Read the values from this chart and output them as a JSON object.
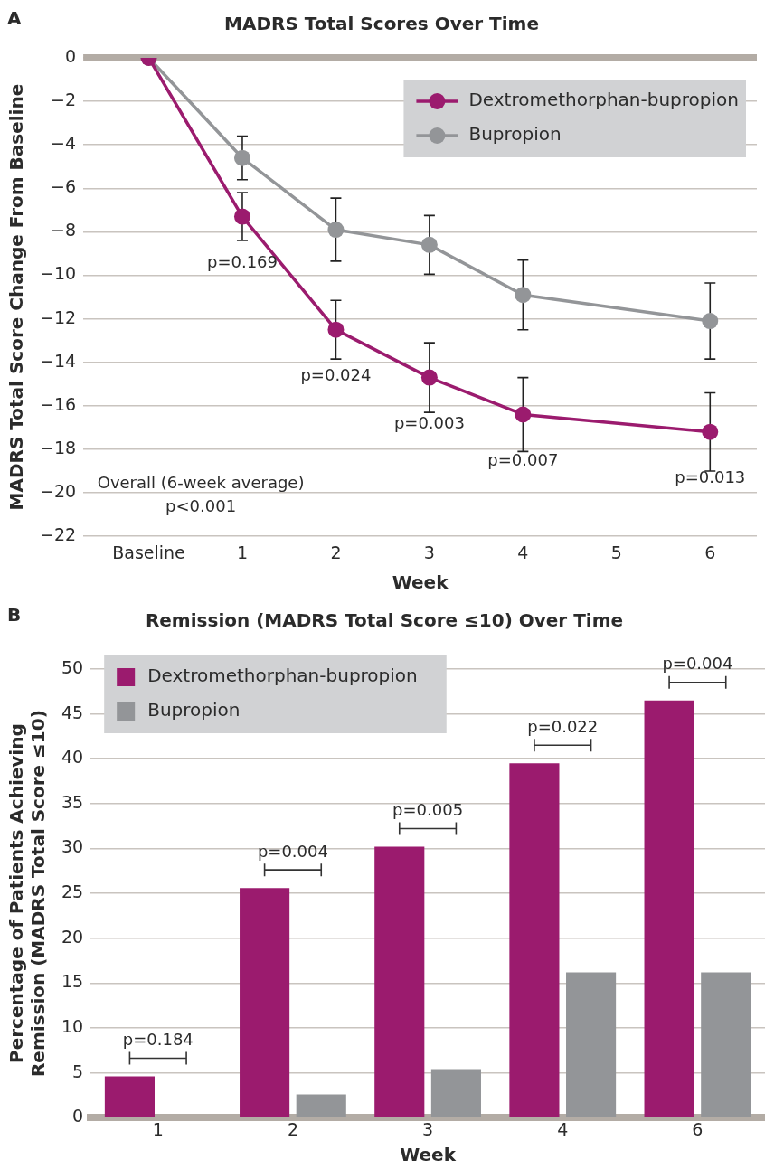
{
  "chart_data": [
    {
      "type": "line",
      "title": "MADRS Total Scores Over Time",
      "xlabel": "Week",
      "ylabel": "MADRS Total Score Change From Baseline",
      "x": [
        0,
        1,
        2,
        3,
        4,
        6
      ],
      "series": [
        {
          "name": "Dextromethorphan-bupropion",
          "color": "#9b1b6e",
          "values": [
            0,
            -7.3,
            -12.5,
            -14.7,
            -16.4,
            -17.2
          ],
          "errors": [
            null,
            1.1,
            1.35,
            1.6,
            1.7,
            1.8
          ]
        },
        {
          "name": "Bupropion",
          "color": "#939598",
          "values": [
            0,
            -4.6,
            -7.9,
            -8.6,
            -10.9,
            -12.1
          ],
          "errors": [
            null,
            1.0,
            1.45,
            1.35,
            1.6,
            1.75
          ]
        }
      ],
      "xlim": [
        -0.7,
        6.5
      ],
      "xticks": [
        {
          "value": 0,
          "label": "Baseline"
        },
        1,
        2,
        3,
        4,
        5,
        6
      ],
      "ylim": [
        -22,
        0
      ],
      "yticks": [
        0,
        {
          "value": -2,
          "label": "−2"
        },
        {
          "value": -4,
          "label": "−4"
        },
        {
          "value": -6,
          "label": "−6"
        },
        {
          "value": -8,
          "label": "−8"
        },
        {
          "value": -10,
          "label": "−10"
        },
        {
          "value": -12,
          "label": "−12"
        },
        {
          "value": -14,
          "label": "−14"
        },
        {
          "value": -16,
          "label": "−16"
        },
        {
          "value": -18,
          "label": "−18"
        },
        {
          "value": -20,
          "label": "−20"
        },
        {
          "value": -22,
          "label": "−22"
        }
      ],
      "grid": "y",
      "legend": "top right",
      "marker": "circle",
      "line_style": "solid",
      "ref_lines": [
        {
          "axis": "y",
          "value": 0,
          "color": "#b3aca5"
        }
      ],
      "annotations": [
        "A",
        "Overall (6-week average)",
        "p<0.001",
        {
          "text": "p=0.169",
          "x": 1,
          "y": -7.3
        },
        {
          "text": "p=0.024",
          "x": 2,
          "y": -12.5
        },
        {
          "text": "p=0.003",
          "x": 3,
          "y": -14.7
        },
        {
          "text": "p=0.007",
          "x": 4,
          "y": -16.4
        },
        {
          "text": "p=0.013",
          "x": 6,
          "y": -17.2
        }
      ]
    },
    {
      "type": "bar",
      "title": "Remission (MADRS Total Score ≤10) Over Time",
      "xlabel": "Week",
      "ylabel": "Percentage of Patients Achieving\nRemission (MADRS Total Score ≤10)",
      "categories": [
        "1",
        "2",
        "3",
        "4",
        "6"
      ],
      "series": [
        {
          "name": "Dextromethorphan-bupropion",
          "color": "#9b1b6e",
          "values": [
            4.6,
            25.6,
            30.2,
            39.5,
            46.5
          ]
        },
        {
          "name": "Bupropion",
          "color": "#939598",
          "values": [
            null,
            2.6,
            5.4,
            16.2,
            16.2
          ]
        }
      ],
      "ylim": [
        0,
        50
      ],
      "yticks": [
        0,
        5,
        10,
        15,
        20,
        25,
        30,
        35,
        40,
        45,
        50
      ],
      "grid": "y",
      "legend": "top left",
      "annotations": [
        "B",
        {
          "text": "p=0.184",
          "x": "1",
          "y": 4.6
        },
        {
          "text": "p=0.004",
          "x": "2",
          "y": 25.6
        },
        {
          "text": "p=0.005",
          "x": "3",
          "y": 30.2
        },
        {
          "text": "p=0.022",
          "x": "4",
          "y": 39.5
        },
        {
          "text": "p=0.004",
          "x": "6",
          "y": 46.5
        }
      ]
    }
  ]
}
